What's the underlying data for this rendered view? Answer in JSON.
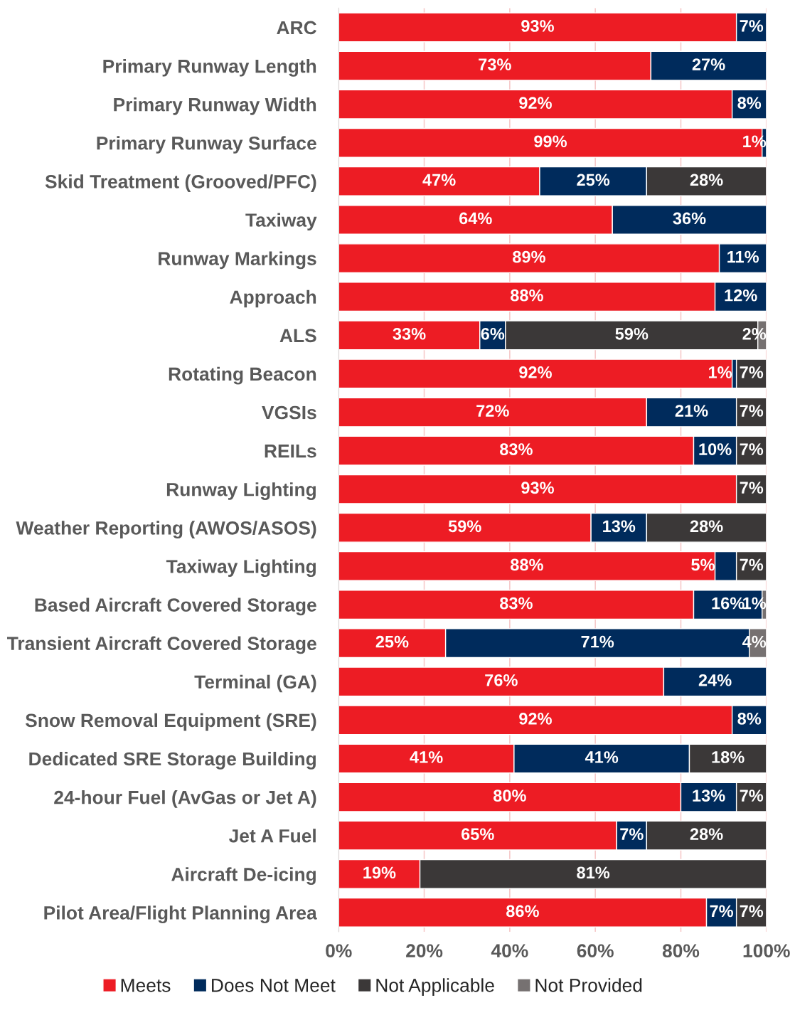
{
  "chart_data": {
    "type": "bar",
    "orientation": "horizontal",
    "stacked": true,
    "grid": "x",
    "legend": "bottom",
    "categories": [
      "ARC",
      "Primary Runway Length",
      "Primary Runway Width",
      "Primary Runway Surface",
      "Skid Treatment (Grooved/PFC)",
      "Taxiway",
      "Runway Markings",
      "Approach",
      "ALS",
      "Rotating Beacon",
      "VGSIs",
      "REILs",
      "Runway Lighting",
      "Weather Reporting (AWOS/ASOS)",
      "Taxiway Lighting",
      "Based Aircraft Covered Storage",
      "Transient Aircraft Covered Storage",
      "Terminal (GA)",
      "Snow Removal Equipment (SRE)",
      "Dedicated SRE Storage Building",
      "24-hour Fuel (AvGas or Jet A)",
      "Jet A Fuel",
      "Aircraft De-icing",
      "Pilot Area/Flight Planning Area"
    ],
    "series": [
      {
        "name": "Meets",
        "color": "#ed1c24",
        "values": [
          93,
          73,
          92,
          99,
          47,
          64,
          89,
          88,
          33,
          92,
          72,
          83,
          93,
          59,
          88,
          83,
          25,
          76,
          92,
          41,
          80,
          65,
          19,
          86
        ],
        "value_labels": [
          "93%",
          "73%",
          "92%",
          "99%",
          "47%",
          "64%",
          "89%",
          "88%",
          "33%",
          "92%",
          "72%",
          "83%",
          "93%",
          "59%",
          "88%",
          "83%",
          "25%",
          "76%",
          "92%",
          "41%",
          "80%",
          "65%",
          "19%",
          "86%"
        ]
      },
      {
        "name": "Does Not Meet",
        "color": "#002b5c",
        "values": [
          7,
          27,
          8,
          1,
          25,
          36,
          11,
          12,
          6,
          1,
          21,
          10,
          null,
          13,
          5,
          16,
          71,
          24,
          8,
          41,
          13,
          7,
          null,
          7
        ],
        "value_labels": [
          "7%",
          "27%",
          "8%",
          "1%",
          "25%",
          "36%",
          "11%",
          "12%",
          "6%",
          "1%",
          "21%",
          "10%",
          null,
          "13%",
          "5%",
          "16%",
          "71%",
          "24%",
          "8%",
          "41%",
          "13%",
          "7%",
          null,
          "7%"
        ]
      },
      {
        "name": "Not Applicable",
        "color": "#3b3838",
        "values": [
          null,
          null,
          null,
          null,
          28,
          null,
          null,
          null,
          59,
          7,
          7,
          7,
          7,
          28,
          7,
          null,
          null,
          null,
          null,
          18,
          7,
          28,
          81,
          7
        ],
        "value_labels": [
          null,
          null,
          null,
          null,
          "28%",
          null,
          null,
          null,
          "59%",
          "7%",
          "7%",
          "7%",
          "7%",
          "28%",
          "7%",
          null,
          null,
          null,
          null,
          "18%",
          "7%",
          "28%",
          "81%",
          "7%"
        ]
      },
      {
        "name": "Not Provided",
        "color": "#767171",
        "values": [
          null,
          null,
          null,
          null,
          null,
          null,
          null,
          null,
          2,
          null,
          null,
          null,
          null,
          null,
          null,
          1,
          4,
          null,
          null,
          null,
          null,
          null,
          null,
          null
        ],
        "value_labels": [
          null,
          null,
          null,
          null,
          null,
          null,
          null,
          null,
          "2%",
          null,
          null,
          null,
          null,
          null,
          null,
          "1%",
          "4%",
          null,
          null,
          null,
          null,
          null,
          null,
          null
        ]
      }
    ],
    "xlim": [
      0,
      100
    ],
    "xticks": [
      {
        "value": 0,
        "label": "0%"
      },
      {
        "value": 20,
        "label": "20%"
      },
      {
        "value": 40,
        "label": "40%"
      },
      {
        "value": 60,
        "label": "60%"
      },
      {
        "value": 80,
        "label": "80%"
      },
      {
        "value": 100,
        "label": "100%"
      }
    ]
  }
}
